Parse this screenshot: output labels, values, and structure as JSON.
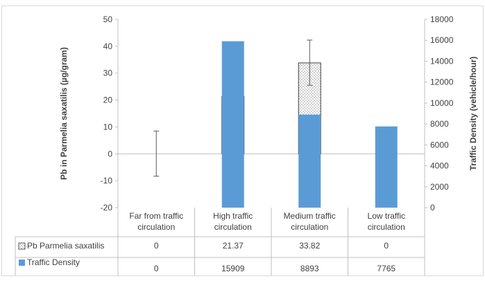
{
  "chart_data": {
    "type": "bar",
    "categories": [
      [
        "Far from traffic",
        "circulation"
      ],
      [
        "High traffic",
        "circulation"
      ],
      [
        "Medium traffic",
        "circulation"
      ],
      [
        "Low traffic",
        "circulation"
      ]
    ],
    "series": [
      {
        "name": "Pb Parmelia saxatilis",
        "axis": "left",
        "values": [
          0,
          21.37,
          33.82,
          0
        ],
        "display": [
          "0",
          "21.37",
          "33.82",
          "0"
        ],
        "error_bars": [
          {
            "low": -8.3,
            "high": 8.5
          },
          null,
          {
            "low": 25.5,
            "high": 42.3
          },
          null
        ],
        "pattern": "dotted",
        "color": "#bfbfbf"
      },
      {
        "name": "Traffic Density",
        "axis": "right",
        "values": [
          0,
          15909,
          8893,
          7765
        ],
        "display": [
          "0",
          "15909",
          "8893",
          "7765"
        ],
        "color": "#5b9bd5"
      }
    ],
    "y_left": {
      "label_parts": [
        "Pb  in ",
        "Parmelia saxatilis",
        "  (µg/gram)"
      ],
      "range": [
        -20,
        50
      ],
      "ticks": [
        -20,
        -10,
        0,
        10,
        20,
        30,
        40,
        50
      ]
    },
    "y_right": {
      "label": "Traffic Density  (vehicle/hour)",
      "range": [
        0,
        18000
      ],
      "ticks": [
        0,
        2000,
        4000,
        6000,
        8000,
        10000,
        12000,
        14000,
        16000,
        18000
      ]
    },
    "grid": false,
    "legend": "data-table"
  }
}
